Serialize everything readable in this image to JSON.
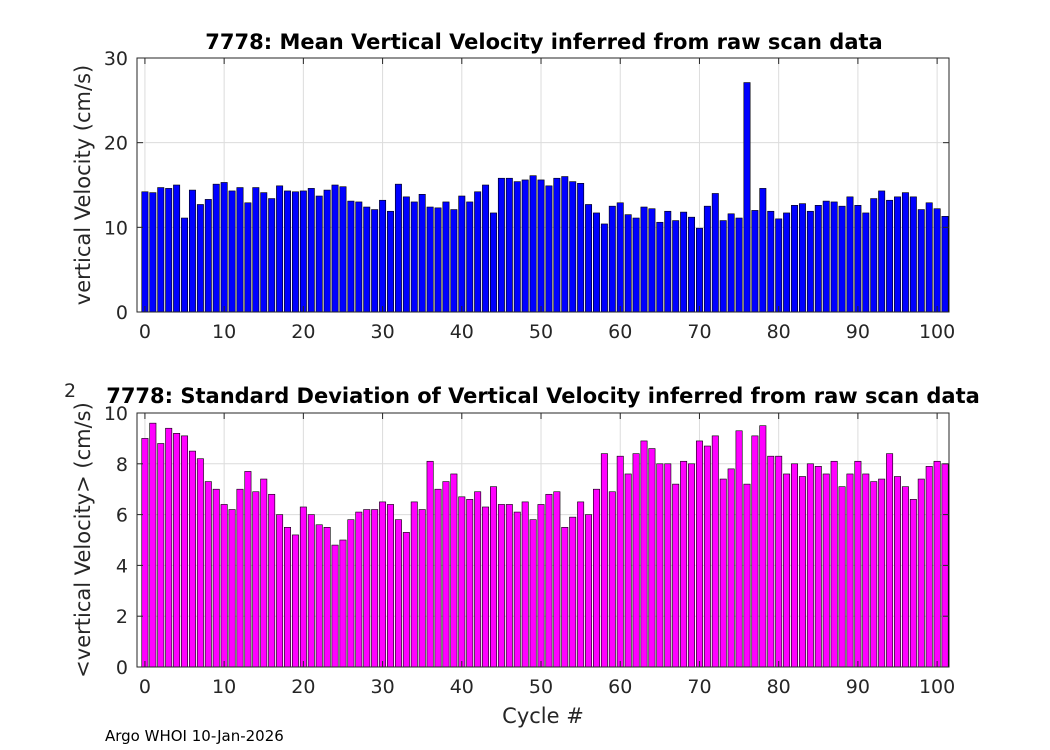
{
  "footer": "Argo WHOI 10-Jan-2026",
  "chart_data": [
    {
      "type": "bar",
      "title": "7778: Mean Vertical Velocity inferred from raw scan data",
      "xlabel": "",
      "ylabel": "vertical Velocity (cm/s)",
      "xlim": [
        -1,
        101.5
      ],
      "ylim": [
        0,
        30
      ],
      "xticks": [
        0,
        10,
        20,
        30,
        40,
        50,
        60,
        70,
        80,
        90,
        100
      ],
      "yticks": [
        0,
        10,
        20,
        30
      ],
      "grid": true,
      "color": "#0000ff",
      "x": [
        0,
        1,
        2,
        3,
        4,
        5,
        6,
        7,
        8,
        9,
        10,
        11,
        12,
        13,
        14,
        15,
        16,
        17,
        18,
        19,
        20,
        21,
        22,
        23,
        24,
        25,
        26,
        27,
        28,
        29,
        30,
        31,
        32,
        33,
        34,
        35,
        36,
        37,
        38,
        39,
        40,
        41,
        42,
        43,
        44,
        45,
        46,
        47,
        48,
        49,
        50,
        51,
        52,
        53,
        54,
        55,
        56,
        57,
        58,
        59,
        60,
        61,
        62,
        63,
        64,
        65,
        66,
        67,
        68,
        69,
        70,
        71,
        72,
        73,
        74,
        75,
        76,
        77,
        78,
        79,
        80,
        81,
        82,
        83,
        84,
        85,
        86,
        87,
        88,
        89,
        90,
        91,
        92,
        93,
        94,
        95,
        96,
        97,
        98,
        99,
        100,
        101
      ],
      "values": [
        14.2,
        14.1,
        14.7,
        14.6,
        15.0,
        11.1,
        14.4,
        12.7,
        13.3,
        15.1,
        15.3,
        14.3,
        14.7,
        12.9,
        14.7,
        14.1,
        13.4,
        14.9,
        14.3,
        14.2,
        14.3,
        14.6,
        13.7,
        14.4,
        15.0,
        14.8,
        13.1,
        13.0,
        12.4,
        12.1,
        13.2,
        11.9,
        15.1,
        13.6,
        13.0,
        13.9,
        12.4,
        12.3,
        13.0,
        12.1,
        13.7,
        13.0,
        14.2,
        15.0,
        11.7,
        15.8,
        15.8,
        15.4,
        15.6,
        16.1,
        15.6,
        14.9,
        15.8,
        16.0,
        15.4,
        15.2,
        12.7,
        11.7,
        10.4,
        12.5,
        12.9,
        11.5,
        11.1,
        12.4,
        12.2,
        10.6,
        11.9,
        10.8,
        11.8,
        11.2,
        9.9,
        12.5,
        14.0,
        10.8,
        11.6,
        11.1,
        27.1,
        12.0,
        14.6,
        11.9,
        11.0,
        11.7,
        12.6,
        12.8,
        11.9,
        12.6,
        13.1,
        13.0,
        12.5,
        13.6,
        12.6,
        11.7,
        13.4,
        14.3,
        13.2,
        13.6,
        14.1,
        13.6,
        12.1,
        12.9,
        12.2,
        11.3
      ]
    },
    {
      "type": "bar",
      "title": "7778: Standard Deviation of Vertical Velocity inferred from raw scan data",
      "xlabel": "Cycle #",
      "ylabel": "<vertical Velocity> (cm/s)",
      "ylabel_superscript": "2",
      "xlim": [
        -1,
        101.5
      ],
      "ylim": [
        0,
        10
      ],
      "xticks": [
        0,
        10,
        20,
        30,
        40,
        50,
        60,
        70,
        80,
        90,
        100
      ],
      "yticks": [
        0,
        2,
        4,
        6,
        8,
        10
      ],
      "grid": true,
      "color": "#ff00ff",
      "x": [
        0,
        1,
        2,
        3,
        4,
        5,
        6,
        7,
        8,
        9,
        10,
        11,
        12,
        13,
        14,
        15,
        16,
        17,
        18,
        19,
        20,
        21,
        22,
        23,
        24,
        25,
        26,
        27,
        28,
        29,
        30,
        31,
        32,
        33,
        34,
        35,
        36,
        37,
        38,
        39,
        40,
        41,
        42,
        43,
        44,
        45,
        46,
        47,
        48,
        49,
        50,
        51,
        52,
        53,
        54,
        55,
        56,
        57,
        58,
        59,
        60,
        61,
        62,
        63,
        64,
        65,
        66,
        67,
        68,
        69,
        70,
        71,
        72,
        73,
        74,
        75,
        76,
        77,
        78,
        79,
        80,
        81,
        82,
        83,
        84,
        85,
        86,
        87,
        88,
        89,
        90,
        91,
        92,
        93,
        94,
        95,
        96,
        97,
        98,
        99,
        100,
        101
      ],
      "values": [
        9.0,
        9.6,
        8.8,
        9.4,
        9.2,
        9.1,
        8.5,
        8.2,
        7.3,
        7.0,
        6.4,
        6.2,
        7.0,
        7.7,
        6.9,
        7.4,
        6.8,
        6.0,
        5.5,
        5.2,
        6.3,
        6.0,
        5.6,
        5.5,
        4.8,
        5.0,
        5.8,
        6.1,
        6.2,
        6.2,
        6.5,
        6.4,
        5.8,
        5.3,
        6.5,
        6.2,
        8.1,
        7.0,
        7.3,
        7.6,
        6.7,
        6.6,
        6.9,
        6.3,
        7.1,
        6.4,
        6.4,
        6.1,
        6.5,
        5.8,
        6.4,
        6.8,
        6.9,
        5.5,
        5.9,
        6.5,
        6.0,
        7.0,
        8.4,
        6.9,
        8.3,
        7.6,
        8.4,
        8.9,
        8.6,
        8.0,
        8.0,
        7.2,
        8.1,
        8.0,
        8.9,
        8.7,
        9.1,
        7.4,
        7.8,
        9.3,
        7.2,
        9.1,
        9.5,
        8.3,
        8.3,
        7.6,
        8.0,
        7.5,
        8.0,
        7.9,
        7.6,
        8.1,
        7.1,
        7.6,
        8.1,
        7.6,
        7.3,
        7.4,
        8.4,
        7.5,
        7.1,
        6.6,
        7.4,
        7.9,
        8.1,
        8.0
      ]
    }
  ]
}
